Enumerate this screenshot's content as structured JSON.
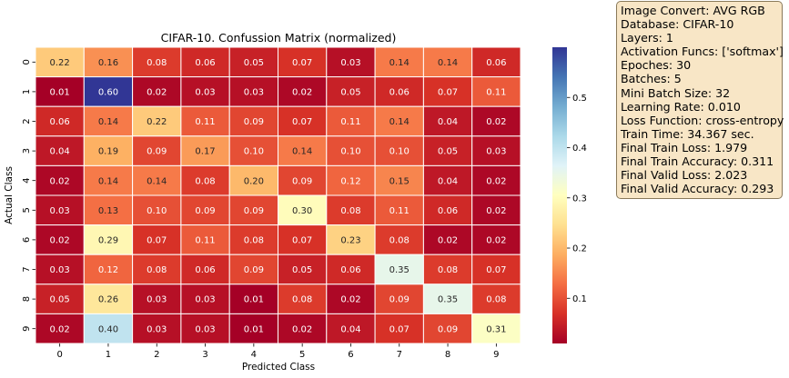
{
  "chart_data": {
    "type": "heatmap",
    "title": "CIFAR-10. Confussion Matrix (normalized)",
    "xlabel": "Predicted Class",
    "ylabel": "Actual Class",
    "x_categories": [
      "0",
      "1",
      "2",
      "3",
      "4",
      "5",
      "6",
      "7",
      "8",
      "9"
    ],
    "y_categories": [
      "0",
      "1",
      "2",
      "3",
      "4",
      "5",
      "6",
      "7",
      "8",
      "9"
    ],
    "values": [
      [
        0.22,
        0.16,
        0.08,
        0.06,
        0.05,
        0.07,
        0.03,
        0.14,
        0.14,
        0.06
      ],
      [
        0.01,
        0.6,
        0.02,
        0.03,
        0.03,
        0.02,
        0.05,
        0.06,
        0.07,
        0.11
      ],
      [
        0.06,
        0.14,
        0.22,
        0.11,
        0.09,
        0.07,
        0.11,
        0.14,
        0.04,
        0.02
      ],
      [
        0.04,
        0.19,
        0.09,
        0.17,
        0.1,
        0.14,
        0.1,
        0.1,
        0.05,
        0.03
      ],
      [
        0.02,
        0.14,
        0.14,
        0.08,
        0.2,
        0.09,
        0.12,
        0.15,
        0.04,
        0.02
      ],
      [
        0.03,
        0.13,
        0.1,
        0.09,
        0.09,
        0.3,
        0.08,
        0.11,
        0.06,
        0.02
      ],
      [
        0.02,
        0.29,
        0.07,
        0.11,
        0.08,
        0.07,
        0.23,
        0.08,
        0.02,
        0.02
      ],
      [
        0.03,
        0.12,
        0.08,
        0.06,
        0.09,
        0.05,
        0.06,
        0.35,
        0.08,
        0.07
      ],
      [
        0.05,
        0.26,
        0.03,
        0.03,
        0.01,
        0.08,
        0.02,
        0.09,
        0.35,
        0.08
      ],
      [
        0.02,
        0.4,
        0.03,
        0.03,
        0.01,
        0.02,
        0.04,
        0.07,
        0.09,
        0.31
      ]
    ],
    "colorbar": {
      "colormap": "RdYlBu",
      "range": [
        0.01,
        0.6
      ],
      "ticks": [
        "0.1",
        "0.2",
        "0.3",
        "0.4",
        "0.5"
      ]
    }
  },
  "info_box": {
    "lines": [
      "Image Convert: AVG RGB",
      "Database: CIFAR-10",
      "Layers: 1",
      "Activation Funcs: ['softmax']",
      "Epoches: 30",
      "Batches: 5",
      "Mini Batch Size: 32",
      "Learning Rate: 0.010",
      "Loss Function: cross-entropy",
      "Train Time: 34.367 sec.",
      "Final Train Loss: 1.979",
      "Final Train Accuracy: 0.311",
      "Final Valid Loss: 2.023",
      "Final Valid Accuracy: 0.293"
    ]
  }
}
